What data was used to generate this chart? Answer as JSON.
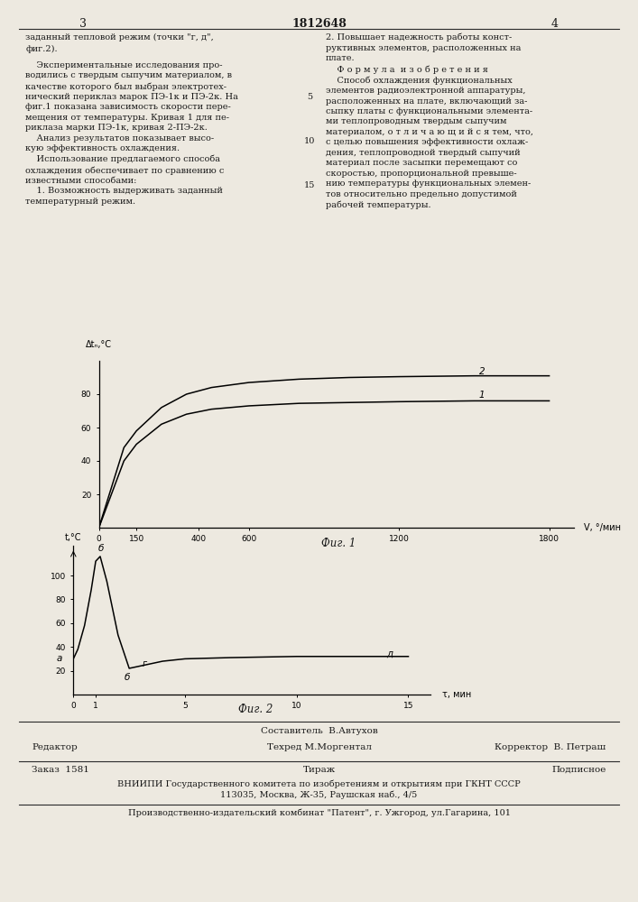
{
  "page_title_center": "1812648",
  "page_num_left": "3",
  "page_num_right": "4",
  "text_left_line1": "заданный тепловой режим (точки \"г, д\",",
  "text_left_line2": "фиг.2).",
  "text_left_body": "    Экспериментальные исследования про-\nводились с твердым сыпучим материалом, в\nкачестве которого был выбран электротех-\nнический периклаз марок ПЭ-1к и ПЭ-2к. На\nфиг.1 показана зависимость скорости пере-\nмещения от температуры. Кривая 1 для пе-\nриклаза марки ПЭ-1к, кривая 2-ПЭ-2к.\n    Анализ результатов показывает высо-\nкую эффективность охлаждения.\n    Использование предлагаемого способа\nохлаждения обеспечивает по сравнению с\nизвестными способами:\n    1. Возможность выдерживать заданный\nтемпературный режим.",
  "text_right_body": "2. Повышает надежность работы конст-\nруктивных элементов, расположенных на\nплате.\n    Ф о р м у л а  и з о б р е т е н и я\n    Способ охлаждения функциональных\nэлементов радиоэлектронной аппаратуры,\nрасположенных на плате, включающий за-\nсыпку платы с функциональными элемента-\nми теплопроводным твердым сыпучим\nматериалом, о т л и ч а ю щ и й с я тем, что,\nс целью повышения эффективности охлаж-\nдения, теплопроводной твердый сыпучий\nматериал после засыпки перемещают со\nскоростью, пропорциональной превыше-\nнию температуры функциональных элемен-\nтов относительно предельно допустимой\nрабочей температуры.",
  "line_numbers": "5\n\n\n10\n\n\n15",
  "fig1_xlabel": "V, °/мин",
  "fig1_ylabel": "Δtₙ,°C",
  "fig1_xtick_labels": [
    "0",
    "150",
    "400",
    "600",
    "1200",
    "1800"
  ],
  "fig1_xtick_vals": [
    0,
    150,
    400,
    600,
    1200,
    1800
  ],
  "fig1_ytick_labels": [
    "20",
    "40",
    "60",
    "80"
  ],
  "fig1_ytick_vals": [
    20,
    40,
    60,
    80
  ],
  "fig1_caption": "Фиг. 1",
  "fig2_xlabel": "τ, мин",
  "fig2_ylabel": "t,°C",
  "fig2_xtick_labels": [
    "0",
    "1",
    "5",
    "10",
    "15"
  ],
  "fig2_xtick_vals": [
    0,
    1,
    5,
    10,
    15
  ],
  "fig2_ytick_labels": [
    "20",
    "40",
    "60",
    "80",
    "100"
  ],
  "fig2_ytick_vals": [
    20,
    40,
    60,
    80,
    100
  ],
  "fig2_caption": "Фиг. 2",
  "footer_sestavitel": "Составитель  В.Автухов",
  "footer_redaktor": "Редактор",
  "footer_tehred": "Техред М.Моргентал",
  "footer_korrektor": "Корректор  В. Петраш",
  "footer_order": "Заказ  1581",
  "footer_tirazh": "Тираж",
  "footer_podpisnoe": "Подписное",
  "footer_vniiipi": "ВНИИПИ Государственного комитета по изобретениям и открытиям при ГКНТ СССР",
  "footer_address": "113035, Москва, Ж-35, Раушская наб., 4/5",
  "footer_factory": "Производственно-издательский комбинат \"Патент\", г. Ужгород, ул.Гагарина, 101",
  "bg_color": "#ede9e0",
  "text_color": "#1a1a1a",
  "line_color": "#2a2a2a"
}
